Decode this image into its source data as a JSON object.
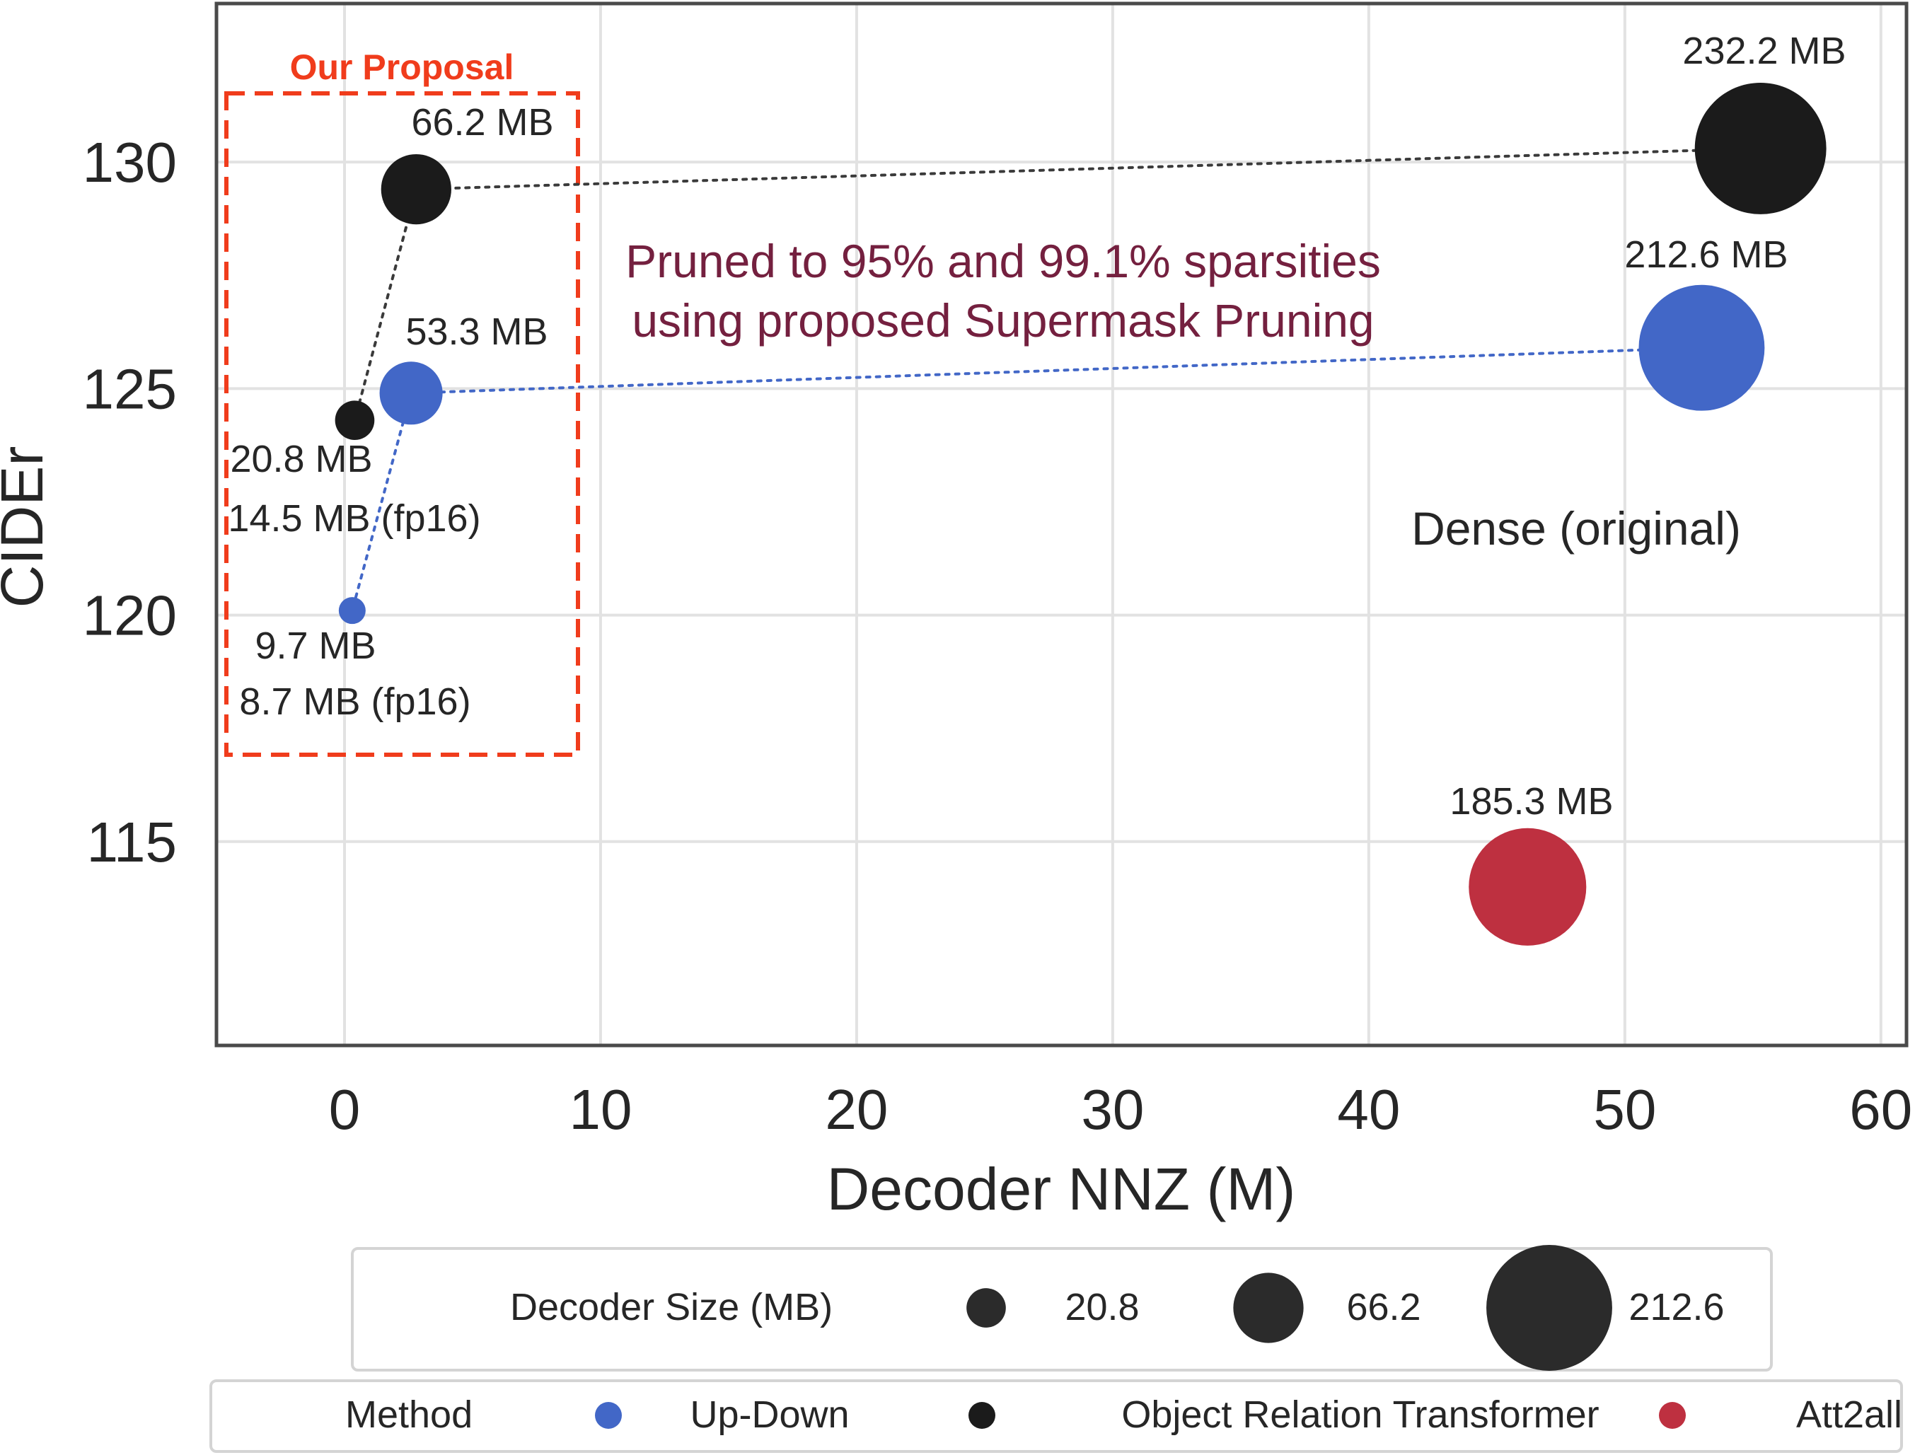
{
  "chart_data": {
    "type": "scatter",
    "title": "",
    "xlabel": "Decoder NNZ (M)",
    "ylabel": "CIDEr",
    "xlim": [
      -5,
      61
    ],
    "ylim": [
      110.5,
      133.5
    ],
    "grid": true,
    "x_ticks": [
      "0",
      "10",
      "20",
      "30",
      "40",
      "50",
      "60"
    ],
    "y_ticks": [
      "115",
      "120",
      "125",
      "130"
    ],
    "series": [
      {
        "name": "Up-Down",
        "color": "#4267c7",
        "points": [
          {
            "x": 0.3,
            "y": 120.1,
            "size_mb": 9.7,
            "labels": [
              "9.7 MB",
              "8.7 MB (fp16)"
            ]
          },
          {
            "x": 2.6,
            "y": 124.9,
            "size_mb": 53.3,
            "labels": [
              "53.3 MB"
            ]
          },
          {
            "x": 53.0,
            "y": 125.9,
            "size_mb": 212.6,
            "labels": [
              "212.6 MB"
            ]
          }
        ]
      },
      {
        "name": "Object Relation Transformer",
        "color": "#1b1b1b",
        "points": [
          {
            "x": 0.4,
            "y": 124.3,
            "size_mb": 20.8,
            "labels": [
              "20.8 MB",
              "14.5 MB (fp16)"
            ]
          },
          {
            "x": 2.8,
            "y": 129.4,
            "size_mb": 66.2,
            "labels": [
              "66.2 MB"
            ]
          },
          {
            "x": 55.3,
            "y": 130.3,
            "size_mb": 232.2,
            "labels": [
              "232.2 MB"
            ]
          }
        ]
      },
      {
        "name": "Att2all",
        "color": "#be3040",
        "points": [
          {
            "x": 46.2,
            "y": 114.0,
            "size_mb": 185.3,
            "labels": [
              "185.3 MB"
            ]
          }
        ]
      }
    ],
    "annotations": {
      "proposal_title": "Our Proposal",
      "pruned_line1": "Pruned to 95% and 99.1% sparsities",
      "pruned_line2": "using proposed Supermask Pruning",
      "dense_label": "Dense (original)"
    },
    "size_legend": {
      "title": "Decoder Size (MB)",
      "entries": [
        {
          "label": "20.8",
          "value": 20.8
        },
        {
          "label": "66.2",
          "value": 66.2
        },
        {
          "label": "212.6",
          "value": 212.6
        }
      ]
    },
    "method_legend": {
      "title": "Method",
      "entries": [
        {
          "label": "Up-Down",
          "color": "#4267c7"
        },
        {
          "label": "Object Relation Transformer",
          "color": "#1b1b1b"
        },
        {
          "label": "Att2all",
          "color": "#be3040"
        }
      ]
    }
  }
}
